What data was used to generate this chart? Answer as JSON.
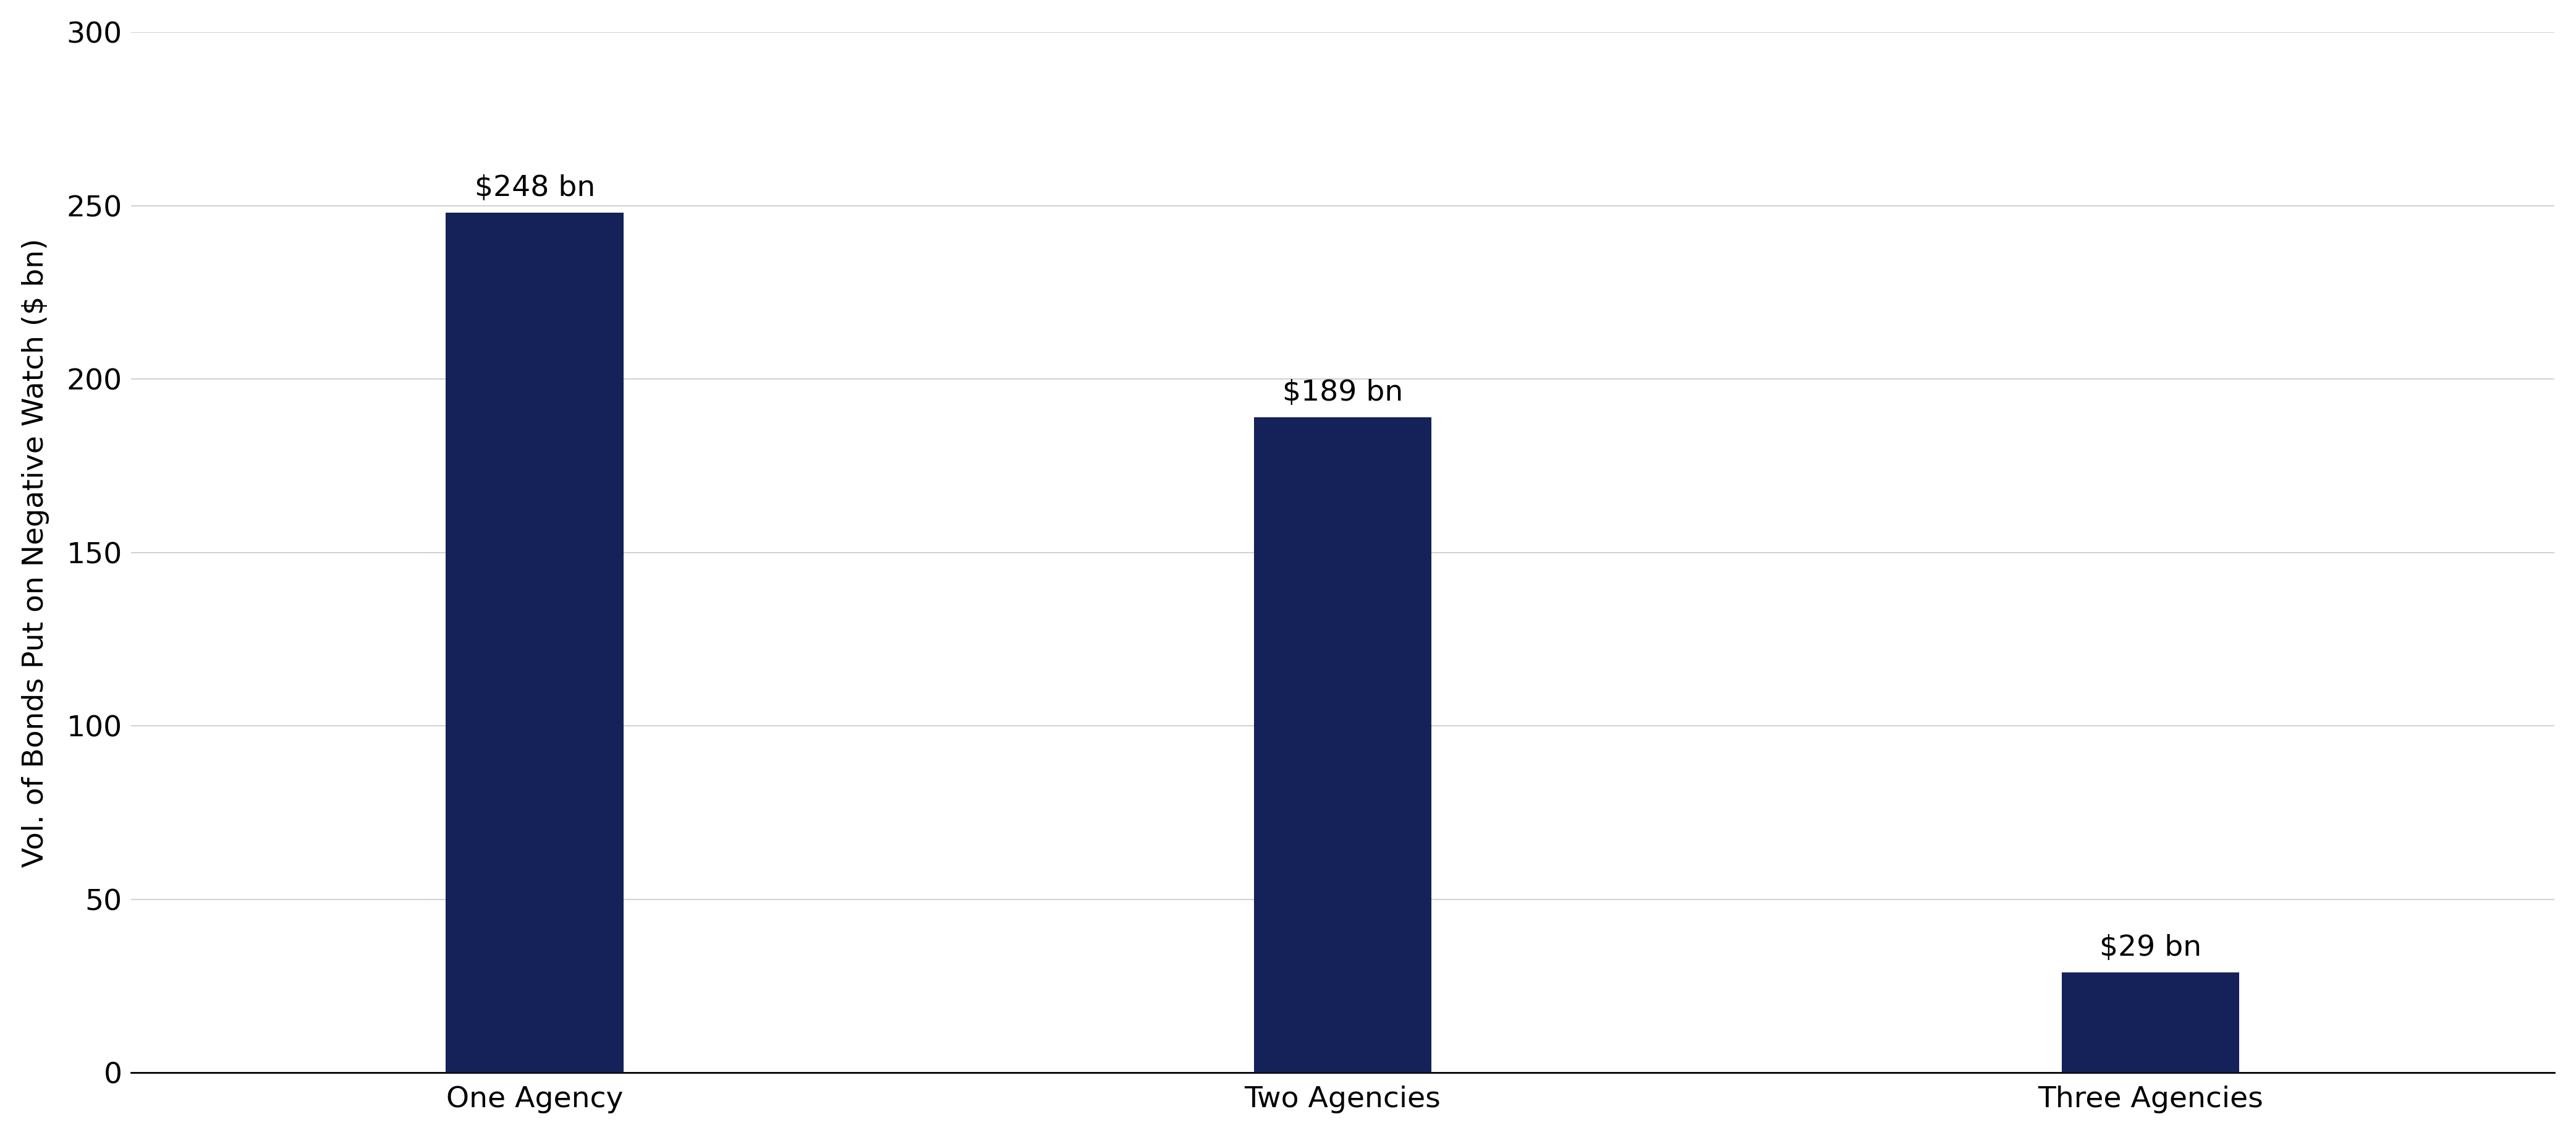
{
  "categories": [
    "One Agency",
    "Two Agencies",
    "Three Agencies"
  ],
  "values": [
    248,
    189,
    29
  ],
  "labels": [
    "$248 bn",
    "$189 bn",
    "$29 bn"
  ],
  "bar_color": "#152259",
  "ylabel": "Vol. of Bonds Put on Negative Watch ($ bn)",
  "ylim": [
    0,
    300
  ],
  "yticks": [
    0,
    50,
    100,
    150,
    200,
    250,
    300
  ],
  "x_positions": [
    1,
    2,
    3
  ],
  "bar_width": 0.22,
  "xlim": [
    0.5,
    3.5
  ],
  "background_color": "#ffffff",
  "grid_color": "#c8c8c8",
  "label_fontsize": 34,
  "tick_fontsize": 34,
  "ylabel_fontsize": 34,
  "annotation_fontsize": 34
}
